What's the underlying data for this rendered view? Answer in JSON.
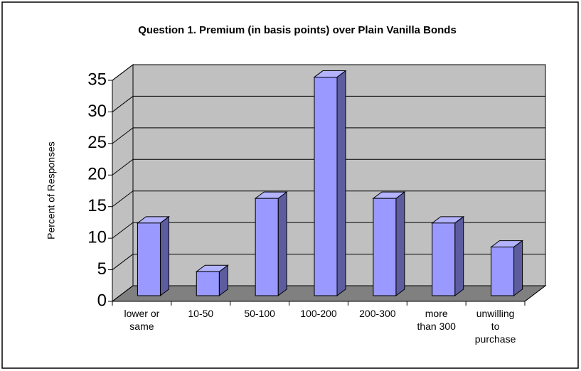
{
  "chart_data": {
    "type": "bar3d",
    "title": "Question 1. Premium (in basis points) over Plain Vanilla Bonds",
    "y_label": "Percent of Responses",
    "categories": [
      "lower or same",
      "10-50",
      "50-100",
      "100-200",
      "200-300",
      "more than 300",
      "unwilling to purchase"
    ],
    "values": [
      11.5,
      3.8,
      15.4,
      34.6,
      15.4,
      11.5,
      7.7
    ],
    "color": "#9999ff",
    "ylim": [
      0,
      35
    ],
    "yticks": [
      0,
      5,
      10,
      15,
      20,
      25,
      30,
      35
    ],
    "grid": true
  }
}
